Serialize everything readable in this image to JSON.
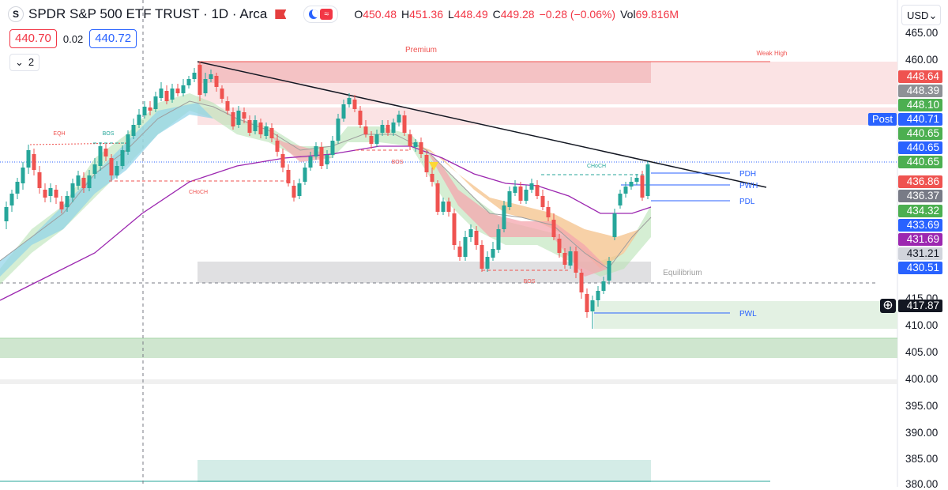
{
  "header": {
    "logo_letter": "S",
    "title": "SPDR S&P 500 ETF TRUST · 1D · Arca",
    "ohlc": {
      "o_label": "O",
      "o": "450.48",
      "h_label": "H",
      "h": "451.36",
      "l_label": "L",
      "l": "448.49",
      "c_label": "C",
      "c": "449.28",
      "change": "−0.28 (−0.06%)",
      "vol_label": "Vol",
      "vol": "69.816M"
    }
  },
  "trade": {
    "sell_price": "440.70",
    "spread": "0.02",
    "buy_price": "440.72"
  },
  "indicators_toggle": {
    "count": "2"
  },
  "currency": {
    "value": "USD",
    "arrow": "⌄"
  },
  "colors": {
    "up": "#26a69a",
    "down": "#ef5350",
    "premium": "#f7c5c7",
    "discount": "#cfe8cf",
    "equilibrium": "#dcdcdc",
    "accent": "#2962ff"
  },
  "y_axis": {
    "ticks": [
      "465.00",
      "460.00",
      "415.00",
      "410.00",
      "405.00",
      "400.00",
      "395.00",
      "390.00",
      "385.00",
      "380.00"
    ]
  },
  "price_labels": [
    {
      "value": "448.64",
      "color": "#ef5350"
    },
    {
      "value": "448.39",
      "color": "#8e9196"
    },
    {
      "value": "448.10",
      "color": "#4caf50"
    },
    {
      "value": "440.71",
      "color": "#2962ff"
    },
    {
      "value": "440.65",
      "color": "#4caf50"
    },
    {
      "value": "440.65",
      "color": "#2962ff"
    },
    {
      "value": "440.65",
      "color": "#4caf50"
    },
    {
      "value": "436.86",
      "color": "#ef5350"
    },
    {
      "value": "436.37",
      "color": "#787b86"
    },
    {
      "value": "434.32",
      "color": "#4caf50"
    },
    {
      "value": "433.69",
      "color": "#2962ff"
    },
    {
      "value": "431.69",
      "color": "#9c27b0"
    },
    {
      "value": "431.21",
      "color": "#d1d4dc"
    },
    {
      "value": "430.51",
      "color": "#2962ff"
    },
    {
      "value": "417.87",
      "color": "#131722"
    }
  ],
  "post_label": "Post",
  "chart_labels": {
    "premium": "Premium",
    "weak_high": "Weak High",
    "equilibrium": "Equilibrium",
    "eqh": "EQH",
    "bos1": "BOS",
    "bos2": "BOS",
    "bos3": "BOS",
    "choch1": "CHoCH",
    "choch2": "CHoCH",
    "pdh": "PDH",
    "pwh": "PWH",
    "pdl": "PDL",
    "pwl": "PWL"
  }
}
